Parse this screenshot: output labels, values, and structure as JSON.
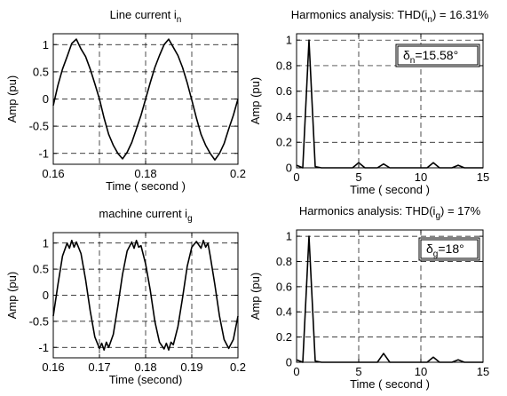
{
  "chart_data": [
    {
      "type": "line",
      "title_main": "Line current i",
      "title_sub": "n",
      "xlabel": "Time ( second )",
      "ylabel": "Amp (pu)",
      "xlim": [
        0.16,
        0.2
      ],
      "ylim": [
        -1.2,
        1.2
      ],
      "xticks": [
        0.16,
        0.18,
        0.2
      ],
      "xtick_labels": [
        "0.16",
        "0.18",
        "0.2"
      ],
      "xgrid": [
        0.17,
        0.18,
        0.19
      ],
      "yticks": [
        -1,
        -0.5,
        0,
        0.5,
        1
      ],
      "ytick_labels": [
        "-1",
        "-0.5",
        "0",
        "0.5",
        "1"
      ],
      "grid": true,
      "series": [
        {
          "x": [
            0.16,
            0.161,
            0.162,
            0.163,
            0.164,
            0.165,
            0.166,
            0.167,
            0.168,
            0.169,
            0.17,
            0.171,
            0.172,
            0.173,
            0.174,
            0.175,
            0.176,
            0.177,
            0.178,
            0.179,
            0.18,
            0.181,
            0.182,
            0.183,
            0.184,
            0.185,
            0.186,
            0.187,
            0.188,
            0.189,
            0.19,
            0.191,
            0.192,
            0.193,
            0.194,
            0.195,
            0.196,
            0.197,
            0.198,
            0.199,
            0.2
          ],
          "y": [
            -0.12,
            0.25,
            0.55,
            0.78,
            1.02,
            1.1,
            0.92,
            0.78,
            0.55,
            0.28,
            0.0,
            -0.35,
            -0.65,
            -0.85,
            -1.0,
            -1.1,
            -0.98,
            -0.8,
            -0.55,
            -0.3,
            0.0,
            0.3,
            0.58,
            0.8,
            1.0,
            1.1,
            0.95,
            0.8,
            0.58,
            0.3,
            -0.02,
            -0.35,
            -0.65,
            -0.85,
            -1.0,
            -1.12,
            -1.0,
            -0.82,
            -0.55,
            -0.3,
            0.0
          ]
        }
      ]
    },
    {
      "type": "line",
      "title_main": "Harmonics analysis:  THD(i",
      "title_sub": "n",
      "title_tail": ") = 16.31%",
      "xlabel": "Time  ( second )",
      "ylabel": "Amp (pu)",
      "xlim": [
        0,
        15
      ],
      "ylim": [
        0,
        1.05
      ],
      "xticks": [
        0,
        5,
        10,
        15
      ],
      "xtick_labels": [
        "0",
        "5",
        "10",
        "15"
      ],
      "xgrid": [
        5,
        10
      ],
      "yticks": [
        0,
        0.2,
        0.4,
        0.6,
        0.8,
        1
      ],
      "ytick_labels": [
        "0",
        "0.2",
        "0.4",
        "0.6",
        "0.8",
        "1"
      ],
      "grid": true,
      "annotation": {
        "main": "δ",
        "sub": "n",
        "tail": "=15.58°"
      },
      "series": [
        {
          "x": [
            0,
            0.5,
            1,
            1.5,
            2,
            3,
            4,
            4.5,
            5,
            5.5,
            6,
            6.5,
            7,
            7.5,
            8,
            9,
            10,
            10.5,
            11,
            11.5,
            12,
            12.5,
            13,
            13.5,
            14,
            15
          ],
          "y": [
            0.02,
            0.0,
            1.0,
            0.01,
            0.0,
            0.0,
            0.0,
            0.0,
            0.04,
            0.0,
            0.0,
            0.0,
            0.03,
            0.0,
            0.0,
            0.0,
            0.0,
            0.0,
            0.04,
            0.0,
            0.0,
            0.0,
            0.02,
            0.0,
            0.0,
            0.0
          ]
        }
      ]
    },
    {
      "type": "line",
      "title_main": "machine current i",
      "title_sub": "g",
      "xlabel": "Time (second)",
      "ylabel": "Amp (pu)",
      "xlim": [
        0.16,
        0.2
      ],
      "ylim": [
        -1.2,
        1.2
      ],
      "xticks": [
        0.16,
        0.17,
        0.18,
        0.19,
        0.2
      ],
      "xtick_labels": [
        "0.16",
        "0.17",
        "0.18",
        "0.19",
        "0.2"
      ],
      "xgrid": [
        0.17,
        0.18,
        0.19
      ],
      "yticks": [
        -1,
        -0.5,
        0,
        0.5,
        1
      ],
      "ytick_labels": [
        "-1",
        "-0.5",
        "0",
        "0.5",
        "1"
      ],
      "grid": true,
      "series": [
        {
          "x": [
            0.16,
            0.161,
            0.162,
            0.163,
            0.1635,
            0.164,
            0.1645,
            0.165,
            0.166,
            0.167,
            0.168,
            0.169,
            0.17,
            0.1705,
            0.171,
            0.1715,
            0.172,
            0.173,
            0.174,
            0.175,
            0.176,
            0.177,
            0.1775,
            0.178,
            0.1785,
            0.179,
            0.18,
            0.181,
            0.182,
            0.183,
            0.184,
            0.1845,
            0.185,
            0.1855,
            0.186,
            0.187,
            0.188,
            0.189,
            0.19,
            0.191,
            0.192,
            0.1925,
            0.193,
            0.1935,
            0.194,
            0.195,
            0.196,
            0.197,
            0.198,
            0.199,
            0.2
          ],
          "y": [
            -0.4,
            0.2,
            0.75,
            1.0,
            0.9,
            1.05,
            0.92,
            1.02,
            0.8,
            0.3,
            -0.3,
            -0.8,
            -1.02,
            -0.92,
            -1.05,
            -0.9,
            -1.0,
            -0.75,
            -0.2,
            0.4,
            0.85,
            1.02,
            0.9,
            1.05,
            0.92,
            0.95,
            0.6,
            0.1,
            -0.5,
            -0.9,
            -1.03,
            -0.92,
            -1.05,
            -0.9,
            -0.95,
            -0.6,
            -0.05,
            0.55,
            0.92,
            1.03,
            0.9,
            1.05,
            0.92,
            1.0,
            0.75,
            0.2,
            -0.4,
            -0.85,
            -1.02,
            -0.85,
            -0.4
          ]
        }
      ]
    },
    {
      "type": "line",
      "title_main": "Harmonics analysis:  THD(i",
      "title_sub": "g",
      "title_tail": ") = 17%",
      "xlabel": "Time ( second )",
      "ylabel": "Amp (pu)",
      "xlim": [
        0,
        15
      ],
      "ylim": [
        0,
        1.05
      ],
      "xticks": [
        0,
        5,
        10,
        15
      ],
      "xtick_labels": [
        "0",
        "5",
        "10",
        "15"
      ],
      "xgrid": [
        5,
        10
      ],
      "yticks": [
        0,
        0.2,
        0.4,
        0.6,
        0.8,
        1
      ],
      "ytick_labels": [
        "0",
        "0.2",
        "0.4",
        "0.6",
        "0.8",
        "1"
      ],
      "grid": true,
      "annotation": {
        "main": "δ",
        "sub": "g",
        "tail": "=18°"
      },
      "series": [
        {
          "x": [
            0,
            0.5,
            1,
            1.5,
            2,
            3,
            4,
            5,
            5.5,
            6,
            6.5,
            7,
            7.5,
            8,
            9,
            10,
            10.5,
            11,
            11.5,
            12,
            12.5,
            13,
            13.5,
            14,
            15
          ],
          "y": [
            0.02,
            0.0,
            1.0,
            0.01,
            0.0,
            0.0,
            0.0,
            0.0,
            0.0,
            0.0,
            0.0,
            0.07,
            0.0,
            0.0,
            0.0,
            0.0,
            0.0,
            0.04,
            0.0,
            0.0,
            0.0,
            0.02,
            0.0,
            0.0,
            0.0
          ]
        }
      ]
    }
  ]
}
